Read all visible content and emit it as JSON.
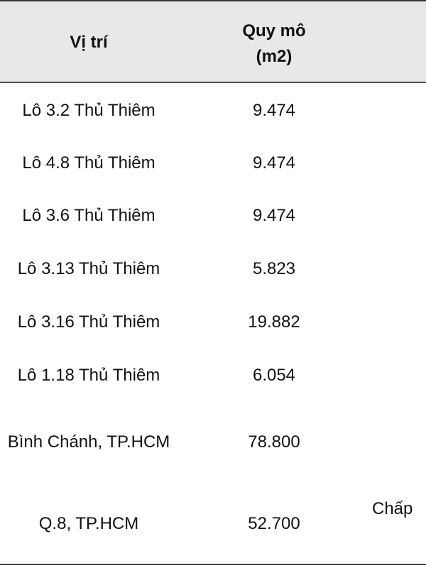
{
  "header": {
    "location": "Vị trí",
    "size": [
      "Quy mô",
      "(m2)"
    ]
  },
  "rows": [
    [
      "Lô 3.2 Thủ Thiêm",
      "9.474"
    ],
    [
      "Lô 4.8 Thủ Thiêm",
      "9.474"
    ],
    [
      "Lô 3.6 Thủ Thiêm",
      "9.474"
    ],
    [
      "Lô 3.13 Thủ Thiêm",
      "5.823"
    ],
    [
      "Lô 3.16 Thủ Thiêm",
      "19.882"
    ],
    [
      "Lô 1.18 Thủ Thiêm",
      "6.054"
    ],
    [
      "Bình Chánh, TP.HCM",
      "78.800"
    ],
    [
      "Q.8, TP.HCM",
      "52.700",
      "Chấp"
    ]
  ]
}
